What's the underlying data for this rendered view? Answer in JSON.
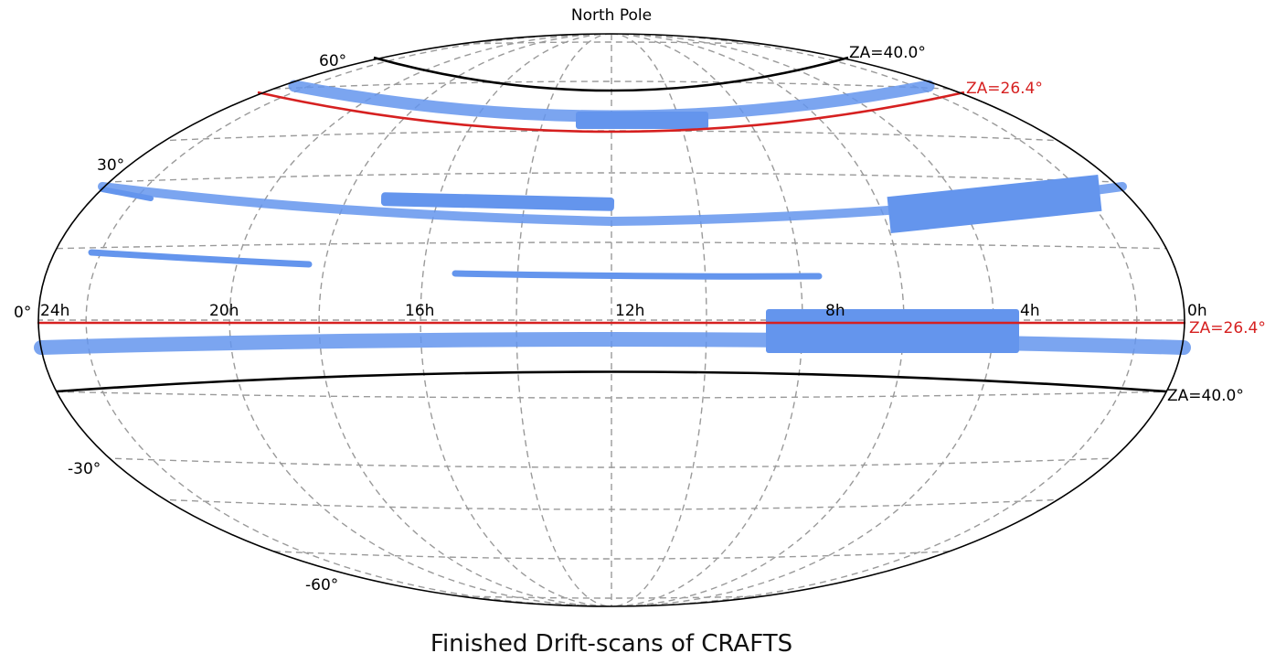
{
  "figure": {
    "title": "Finished Drift-scans of CRAFTS",
    "top_label": "North Pole"
  },
  "dec_labels": {
    "d60": "60°",
    "d30": "30°",
    "d0": "0°",
    "dm30": "-30°",
    "dm60": "-60°"
  },
  "ra_labels": {
    "h24": "24h",
    "h20": "20h",
    "h16": "16h",
    "h12": "12h",
    "h8": "8h",
    "h4": "4h",
    "h0": "0h"
  },
  "za_labels": {
    "north_outer": "ZA=40.0°",
    "north_inner": "ZA=26.4°",
    "south_inner": "ZA=26.4°",
    "south_outer": "ZA=40.0°"
  },
  "colors": {
    "scan": "#6495ED",
    "za_inner": "#d62020",
    "za_outer": "#000000",
    "grid": "#9a9a9a"
  }
}
